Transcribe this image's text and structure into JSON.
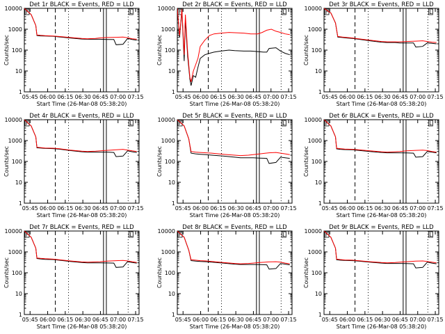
{
  "colors": {
    "events": "#000000",
    "lld": "#ff0000",
    "background": "#ffffff",
    "axes": "#000000"
  },
  "chart_data": [
    {
      "type": "line",
      "title": "Det 1r BLACK = Events, RED = LLD",
      "xlabel": "Start Time (26-Mar-08 05:38:20)",
      "ylabel": "Counts/sec",
      "x_ticks": [
        "05:45",
        "06:00",
        "06:15",
        "06:30",
        "06:45",
        "07:00",
        "07:15"
      ],
      "y_ticks": [
        "1",
        "10",
        "100",
        "1000",
        "10000"
      ],
      "xlim": [
        0,
        100
      ],
      "ylim": [
        1,
        10000
      ],
      "y_scale": "log",
      "grid": false,
      "markers": [
        "F",
        "L"
      ],
      "series": [
        {
          "color": "#000000",
          "x": [
            0,
            6,
            10,
            11,
            14,
            18,
            25,
            30,
            40,
            50,
            55,
            62,
            65,
            72,
            78,
            80,
            86,
            90,
            94,
            98
          ],
          "y": [
            10000,
            5000,
            1500,
            500,
            480,
            470,
            460,
            430,
            380,
            340,
            330,
            330,
            330,
            320,
            320,
            180,
            190,
            360,
            320,
            300
          ]
        },
        {
          "color": "#ff0000",
          "x": [
            0,
            6,
            10,
            11,
            14,
            18,
            25,
            30,
            40,
            50,
            55,
            62,
            65,
            72,
            80,
            86,
            90,
            94,
            98
          ],
          "y": [
            10000,
            5000,
            1500,
            530,
            510,
            490,
            470,
            450,
            400,
            360,
            350,
            360,
            380,
            400,
            410,
            420,
            390,
            350,
            330
          ]
        }
      ]
    },
    {
      "type": "line",
      "title": "Det 2r BLACK = Events, RED = LLD",
      "xlabel": "Start Time (26-Mar-08 05:38:20)",
      "ylabel": "Counts/sec",
      "x_ticks": [
        "05:45",
        "06:00",
        "06:15",
        "06:30",
        "06:45",
        "07:00",
        "07:15"
      ],
      "y_ticks": [
        "1",
        "10",
        "100",
        "1000",
        "10000"
      ],
      "xlim": [
        0,
        100
      ],
      "ylim": [
        1,
        10000
      ],
      "y_scale": "log",
      "grid": false,
      "markers": [
        "F",
        "L"
      ],
      "series": [
        {
          "color": "#000000",
          "x": [
            0,
            2,
            4,
            6,
            7,
            9,
            11,
            12,
            14,
            16,
            18,
            20,
            24,
            28,
            32,
            38,
            45,
            50,
            58,
            64,
            70,
            75,
            78,
            80,
            86,
            90,
            94,
            98
          ],
          "y": [
            10000,
            400,
            8000,
            30,
            3000,
            50,
            4,
            2,
            6,
            5,
            15,
            40,
            60,
            70,
            80,
            90,
            100,
            95,
            90,
            90,
            85,
            80,
            80,
            120,
            130,
            90,
            70,
            60
          ]
        },
        {
          "color": "#ff0000",
          "x": [
            0,
            2,
            4,
            6,
            7,
            9,
            11,
            12,
            14,
            16,
            18,
            20,
            24,
            28,
            32,
            38,
            45,
            50,
            58,
            64,
            70,
            74,
            78,
            82,
            86,
            90,
            94,
            98
          ],
          "y": [
            10000,
            500,
            9000,
            60,
            5000,
            80,
            5,
            3,
            10,
            20,
            40,
            150,
            300,
            500,
            600,
            650,
            700,
            680,
            650,
            600,
            600,
            700,
            900,
            1000,
            800,
            700,
            600,
            550
          ]
        }
      ]
    },
    {
      "type": "line",
      "title": "Det 3r BLACK = Events, RED = LLD",
      "xlabel": "Start Time (26-Mar-08 05:38:20)",
      "ylabel": "Counts/sec",
      "x_ticks": [
        "05:45",
        "06:00",
        "06:15",
        "06:30",
        "06:45",
        "07:00",
        "07:15"
      ],
      "y_ticks": [
        "1",
        "10",
        "100",
        "1000",
        "10000"
      ],
      "xlim": [
        0,
        100
      ],
      "ylim": [
        1,
        10000
      ],
      "y_scale": "log",
      "grid": false,
      "markers": [
        "F",
        "L"
      ],
      "series": [
        {
          "color": "#000000",
          "x": [
            0,
            6,
            10,
            12,
            16,
            20,
            25,
            30,
            40,
            50,
            55,
            62,
            66,
            72,
            78,
            80,
            86,
            90,
            94,
            98
          ],
          "y": [
            10000,
            6000,
            2000,
            420,
            400,
            380,
            360,
            330,
            280,
            240,
            230,
            230,
            220,
            220,
            220,
            140,
            150,
            220,
            210,
            200
          ]
        },
        {
          "color": "#ff0000",
          "x": [
            0,
            6,
            10,
            12,
            16,
            20,
            25,
            30,
            40,
            50,
            55,
            62,
            66,
            72,
            80,
            86,
            90,
            94,
            98
          ],
          "y": [
            10000,
            6000,
            2000,
            450,
            420,
            400,
            380,
            350,
            300,
            260,
            250,
            250,
            250,
            260,
            270,
            280,
            260,
            240,
            230
          ]
        }
      ]
    },
    {
      "type": "line",
      "title": "Det 4r BLACK = Events, RED = LLD",
      "xlabel": "Start Time (26-Mar-08 05:38:20)",
      "ylabel": "Counts/sec",
      "x_ticks": [
        "05:45",
        "06:00",
        "06:15",
        "06:30",
        "06:45",
        "07:00",
        "07:15"
      ],
      "y_ticks": [
        "1",
        "10",
        "100",
        "1000",
        "10000"
      ],
      "xlim": [
        0,
        100
      ],
      "ylim": [
        1,
        10000
      ],
      "y_scale": "log",
      "grid": false,
      "markers": [
        "F",
        "L"
      ],
      "series": [
        {
          "color": "#000000",
          "x": [
            0,
            6,
            10,
            11,
            14,
            18,
            25,
            30,
            40,
            50,
            55,
            62,
            66,
            72,
            78,
            80,
            86,
            90,
            94,
            98
          ],
          "y": [
            10000,
            5000,
            1500,
            450,
            440,
            420,
            410,
            390,
            330,
            290,
            280,
            280,
            280,
            280,
            270,
            170,
            180,
            320,
            290,
            270
          ]
        },
        {
          "color": "#ff0000",
          "x": [
            0,
            6,
            10,
            11,
            14,
            18,
            25,
            30,
            40,
            50,
            55,
            62,
            66,
            72,
            80,
            86,
            90,
            94,
            98
          ],
          "y": [
            10000,
            5000,
            1500,
            480,
            460,
            440,
            430,
            410,
            350,
            310,
            300,
            310,
            320,
            340,
            360,
            380,
            350,
            320,
            300
          ]
        }
      ]
    },
    {
      "type": "line",
      "title": "Det 5r BLACK = Events, RED = LLD",
      "xlabel": "Start Time (26-Mar-08 05:38:20)",
      "ylabel": "Counts/sec",
      "x_ticks": [
        "05:45",
        "06:00",
        "06:15",
        "06:30",
        "06:45",
        "07:00",
        "07:15"
      ],
      "y_ticks": [
        "1",
        "10",
        "100",
        "1000",
        "10000"
      ],
      "xlim": [
        0,
        100
      ],
      "ylim": [
        1,
        10000
      ],
      "y_scale": "log",
      "grid": false,
      "markers": [
        "F",
        "L"
      ],
      "series": [
        {
          "color": "#000000",
          "x": [
            0,
            6,
            10,
            12,
            16,
            20,
            25,
            30,
            40,
            50,
            55,
            62,
            66,
            72,
            78,
            80,
            86,
            90,
            94,
            98
          ],
          "y": [
            10000,
            5000,
            1200,
            250,
            230,
            220,
            210,
            200,
            180,
            160,
            150,
            150,
            150,
            145,
            140,
            80,
            90,
            160,
            150,
            140
          ]
        },
        {
          "color": "#ff0000",
          "x": [
            0,
            6,
            10,
            12,
            16,
            20,
            25,
            30,
            40,
            50,
            55,
            62,
            66,
            72,
            80,
            86,
            90,
            94,
            98
          ],
          "y": [
            10000,
            5000,
            1200,
            300,
            280,
            270,
            260,
            250,
            220,
            200,
            190,
            200,
            210,
            230,
            260,
            270,
            250,
            230,
            210
          ]
        }
      ]
    },
    {
      "type": "line",
      "title": "Det 6r BLACK = Events, RED = LLD",
      "xlabel": "Start Time (26-Mar-08 05:38:20)",
      "ylabel": "Counts/sec",
      "x_ticks": [
        "05:45",
        "06:00",
        "06:15",
        "06:30",
        "06:45",
        "07:00",
        "07:15"
      ],
      "y_ticks": [
        "1",
        "10",
        "100",
        "1000",
        "10000"
      ],
      "xlim": [
        0,
        100
      ],
      "ylim": [
        1,
        10000
      ],
      "y_scale": "log",
      "grid": false,
      "markers": [
        "F",
        "L"
      ],
      "series": [
        {
          "color": "#000000",
          "x": [
            0,
            6,
            10,
            11,
            14,
            18,
            25,
            30,
            40,
            50,
            55,
            62,
            66,
            72,
            78,
            80,
            86,
            90,
            94,
            98
          ],
          "y": [
            10000,
            5000,
            1500,
            400,
            380,
            370,
            360,
            340,
            300,
            270,
            260,
            260,
            260,
            255,
            250,
            160,
            170,
            300,
            280,
            260
          ]
        },
        {
          "color": "#ff0000",
          "x": [
            0,
            6,
            10,
            11,
            14,
            18,
            25,
            30,
            40,
            50,
            55,
            62,
            66,
            72,
            80,
            86,
            90,
            94,
            98
          ],
          "y": [
            10000,
            5000,
            1500,
            430,
            410,
            390,
            380,
            360,
            320,
            290,
            280,
            290,
            300,
            320,
            340,
            350,
            330,
            300,
            280
          ]
        }
      ]
    },
    {
      "type": "line",
      "title": "Det 7r BLACK = Events, RED = LLD",
      "xlabel": "Start Time (26-Mar-08 05:38:20)",
      "ylabel": "Counts/sec",
      "x_ticks": [
        "05:45",
        "06:00",
        "06:15",
        "06:30",
        "06:45",
        "07:00",
        "07:15"
      ],
      "y_ticks": [
        "1",
        "10",
        "100",
        "1000",
        "10000"
      ],
      "xlim": [
        0,
        100
      ],
      "ylim": [
        1,
        10000
      ],
      "y_scale": "log",
      "grid": false,
      "markers": [
        "F",
        "L"
      ],
      "series": [
        {
          "color": "#000000",
          "x": [
            0,
            6,
            10,
            11,
            14,
            18,
            25,
            30,
            40,
            50,
            55,
            62,
            66,
            72,
            78,
            80,
            86,
            90,
            94,
            98
          ],
          "y": [
            10000,
            5000,
            1500,
            480,
            460,
            440,
            430,
            400,
            350,
            310,
            300,
            300,
            300,
            295,
            290,
            180,
            190,
            340,
            310,
            290
          ]
        },
        {
          "color": "#ff0000",
          "x": [
            0,
            6,
            10,
            11,
            14,
            18,
            25,
            30,
            40,
            50,
            55,
            62,
            66,
            72,
            80,
            86,
            90,
            94,
            98
          ],
          "y": [
            10000,
            5000,
            1500,
            510,
            490,
            470,
            450,
            420,
            370,
            330,
            320,
            330,
            340,
            360,
            380,
            390,
            370,
            340,
            310
          ]
        }
      ]
    },
    {
      "type": "line",
      "title": "Det 8r BLACK = Events, RED = LLD",
      "xlabel": "Start Time (26-Mar-08 05:38:20)",
      "ylabel": "Counts/sec",
      "x_ticks": [
        "05:45",
        "06:00",
        "06:15",
        "06:30",
        "06:45",
        "07:00",
        "07:15"
      ],
      "y_ticks": [
        "1",
        "10",
        "100",
        "1000",
        "10000"
      ],
      "xlim": [
        0,
        100
      ],
      "ylim": [
        1,
        10000
      ],
      "y_scale": "log",
      "grid": false,
      "markers": [
        "F",
        "L"
      ],
      "series": [
        {
          "color": "#000000",
          "x": [
            0,
            6,
            10,
            12,
            16,
            20,
            25,
            30,
            40,
            50,
            55,
            62,
            66,
            72,
            78,
            80,
            86,
            90,
            94,
            98
          ],
          "y": [
            10000,
            5000,
            1200,
            380,
            360,
            350,
            340,
            320,
            290,
            260,
            250,
            250,
            250,
            245,
            240,
            150,
            160,
            280,
            260,
            240
          ]
        },
        {
          "color": "#ff0000",
          "x": [
            0,
            6,
            10,
            12,
            16,
            20,
            25,
            30,
            40,
            50,
            55,
            62,
            66,
            72,
            80,
            86,
            90,
            94,
            98
          ],
          "y": [
            10000,
            5000,
            1200,
            420,
            400,
            380,
            370,
            350,
            310,
            280,
            270,
            280,
            290,
            310,
            330,
            340,
            320,
            290,
            270
          ]
        }
      ]
    },
    {
      "type": "line",
      "title": "Det 9r BLACK = Events, RED = LLD",
      "xlabel": "Start Time (26-Mar-08 05:38:20)",
      "ylabel": "Counts/sec",
      "x_ticks": [
        "05:45",
        "06:00",
        "06:15",
        "06:30",
        "06:45",
        "07:00",
        "07:15"
      ],
      "y_ticks": [
        "1",
        "10",
        "100",
        "1000",
        "10000"
      ],
      "xlim": [
        0,
        100
      ],
      "ylim": [
        1,
        10000
      ],
      "y_scale": "log",
      "grid": false,
      "markers": [
        "F",
        "L"
      ],
      "series": [
        {
          "color": "#000000",
          "x": [
            0,
            6,
            10,
            11,
            14,
            18,
            25,
            30,
            40,
            50,
            55,
            62,
            66,
            72,
            78,
            80,
            86,
            90,
            94,
            98
          ],
          "y": [
            10000,
            5000,
            1500,
            420,
            400,
            390,
            380,
            360,
            320,
            290,
            280,
            280,
            280,
            275,
            270,
            170,
            180,
            320,
            290,
            270
          ]
        },
        {
          "color": "#ff0000",
          "x": [
            0,
            6,
            10,
            11,
            14,
            18,
            25,
            30,
            40,
            50,
            55,
            62,
            66,
            72,
            80,
            86,
            90,
            94,
            98
          ],
          "y": [
            10000,
            5000,
            1500,
            450,
            430,
            410,
            400,
            380,
            340,
            310,
            300,
            310,
            320,
            340,
            360,
            370,
            350,
            320,
            300
          ]
        }
      ]
    }
  ]
}
